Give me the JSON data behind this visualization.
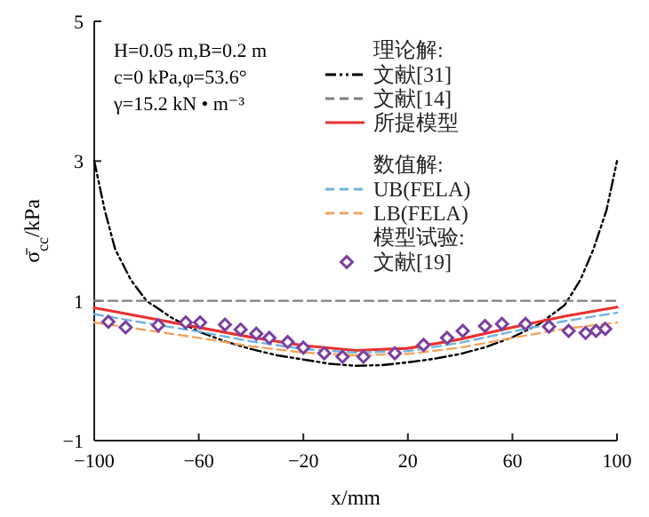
{
  "chart_data": {
    "type": "line",
    "xlabel": "x/mm",
    "ylabel": "σ̄$_{cc}$/kPa",
    "xlim": [
      -100,
      100
    ],
    "xticks": [
      -100,
      -60,
      -20,
      20,
      60,
      100
    ],
    "ylim": [
      -1,
      5
    ],
    "yticks": [
      -1,
      1,
      3,
      5
    ],
    "grid": false,
    "legend": "top right",
    "annotations": [
      "H=0.05 m,B=0.2 m",
      "c=0 kPa,φ=53.6°",
      "γ=15.2 kN • m⁻³",
      "理论解:",
      "数值解:",
      "模型试验:"
    ],
    "series": [
      {
        "name": "文献[31]",
        "color": "#000000",
        "line_style": "dotted",
        "x": [
          -100,
          -96,
          -92,
          -86,
          -80,
          -70,
          -60,
          -50,
          -40,
          -30,
          -20,
          -10,
          0,
          10,
          20,
          30,
          40,
          50,
          60,
          70,
          80,
          86,
          91,
          96,
          100
        ],
        "values": [
          3,
          2.3,
          1.74,
          1.3,
          1.0,
          0.75,
          0.56,
          0.42,
          0.31,
          0.22,
          0.16,
          0.1,
          0.07,
          0.08,
          0.12,
          0.17,
          0.24,
          0.34,
          0.48,
          0.66,
          0.94,
          1.3,
          1.74,
          2.3,
          3
        ]
      },
      {
        "name": "文献[14]",
        "color": "#808080",
        "line_style": "dashed",
        "x": [
          -100,
          100
        ],
        "values": [
          1,
          1
        ]
      },
      {
        "name": "所提模型",
        "color": "#e8312f",
        "line_style": "solid",
        "x": [
          -100,
          -80,
          -60,
          -40,
          -20,
          0,
          20,
          40,
          60,
          80,
          100
        ],
        "values": [
          0.9,
          0.76,
          0.62,
          0.48,
          0.36,
          0.29,
          0.32,
          0.45,
          0.62,
          0.78,
          0.91
        ]
      },
      {
        "name": "UB(FELA)",
        "color": "#6fb3e0",
        "line_style": "dashed",
        "x": [
          -100,
          -80,
          -60,
          -40,
          -20,
          0,
          20,
          40,
          60,
          80,
          100
        ],
        "values": [
          0.81,
          0.68,
          0.56,
          0.42,
          0.31,
          0.26,
          0.28,
          0.4,
          0.56,
          0.71,
          0.83
        ]
      },
      {
        "name": "LB(FELA)",
        "color": "#f4a460",
        "line_style": "dashed",
        "x": [
          -100,
          -80,
          -60,
          -40,
          -20,
          0,
          20,
          40,
          60,
          80,
          100
        ],
        "values": [
          0.69,
          0.58,
          0.47,
          0.35,
          0.26,
          0.22,
          0.24,
          0.33,
          0.47,
          0.6,
          0.69
        ]
      },
      {
        "name": "文献[19]",
        "type": "scatter",
        "marker": "diamond",
        "color": "#7b3fa0",
        "x": [
          -94.6,
          -88,
          -75.5,
          -65,
          -59.5,
          -50,
          -44,
          -38,
          -33,
          -26,
          -20,
          -12,
          -5,
          3,
          15,
          26,
          35,
          41,
          49.5,
          56,
          65,
          74,
          81.5,
          88,
          92,
          95.5
        ],
        "values": [
          0.7,
          0.62,
          0.65,
          0.69,
          0.69,
          0.66,
          0.59,
          0.53,
          0.47,
          0.41,
          0.33,
          0.25,
          0.2,
          0.2,
          0.25,
          0.37,
          0.47,
          0.57,
          0.64,
          0.67,
          0.67,
          0.63,
          0.57,
          0.54,
          0.57,
          0.6
        ]
      }
    ]
  }
}
